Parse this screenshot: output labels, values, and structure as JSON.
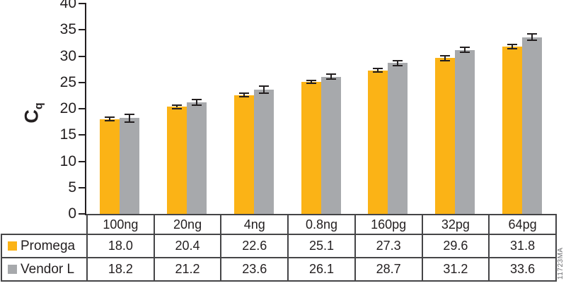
{
  "watermark": "11723MA",
  "colors": {
    "promega_orange": "#FBB316",
    "vendor_gray": "#A7A9AC",
    "axis_black": "#231F20",
    "table_border": "#454547",
    "watermark_gray": "#6D6E71"
  },
  "chart_data": {
    "type": "bar",
    "title": "",
    "xlabel": "",
    "ylabel": {
      "base": "C",
      "sub": "q"
    },
    "ylim": [
      0,
      40
    ],
    "yticks": [
      0,
      5,
      10,
      15,
      20,
      25,
      30,
      35,
      40
    ],
    "grid": false,
    "legend_position": "table-left",
    "categories": [
      "100ng",
      "20ng",
      "4ng",
      "0.8ng",
      "160pg",
      "32pg",
      "64pg"
    ],
    "series": [
      {
        "name": "Promega",
        "color": "#FBB316",
        "values": [
          18.0,
          20.4,
          22.6,
          25.1,
          27.3,
          29.6,
          31.8
        ],
        "errors": [
          0.2,
          0.2,
          0.25,
          0.2,
          0.2,
          0.3,
          0.3
        ]
      },
      {
        "name": "Vendor L",
        "color": "#A7A9AC",
        "values": [
          18.2,
          21.2,
          23.6,
          26.1,
          28.7,
          31.2,
          33.6
        ],
        "errors": [
          0.55,
          0.45,
          0.5,
          0.3,
          0.35,
          0.3,
          0.45
        ]
      }
    ]
  }
}
